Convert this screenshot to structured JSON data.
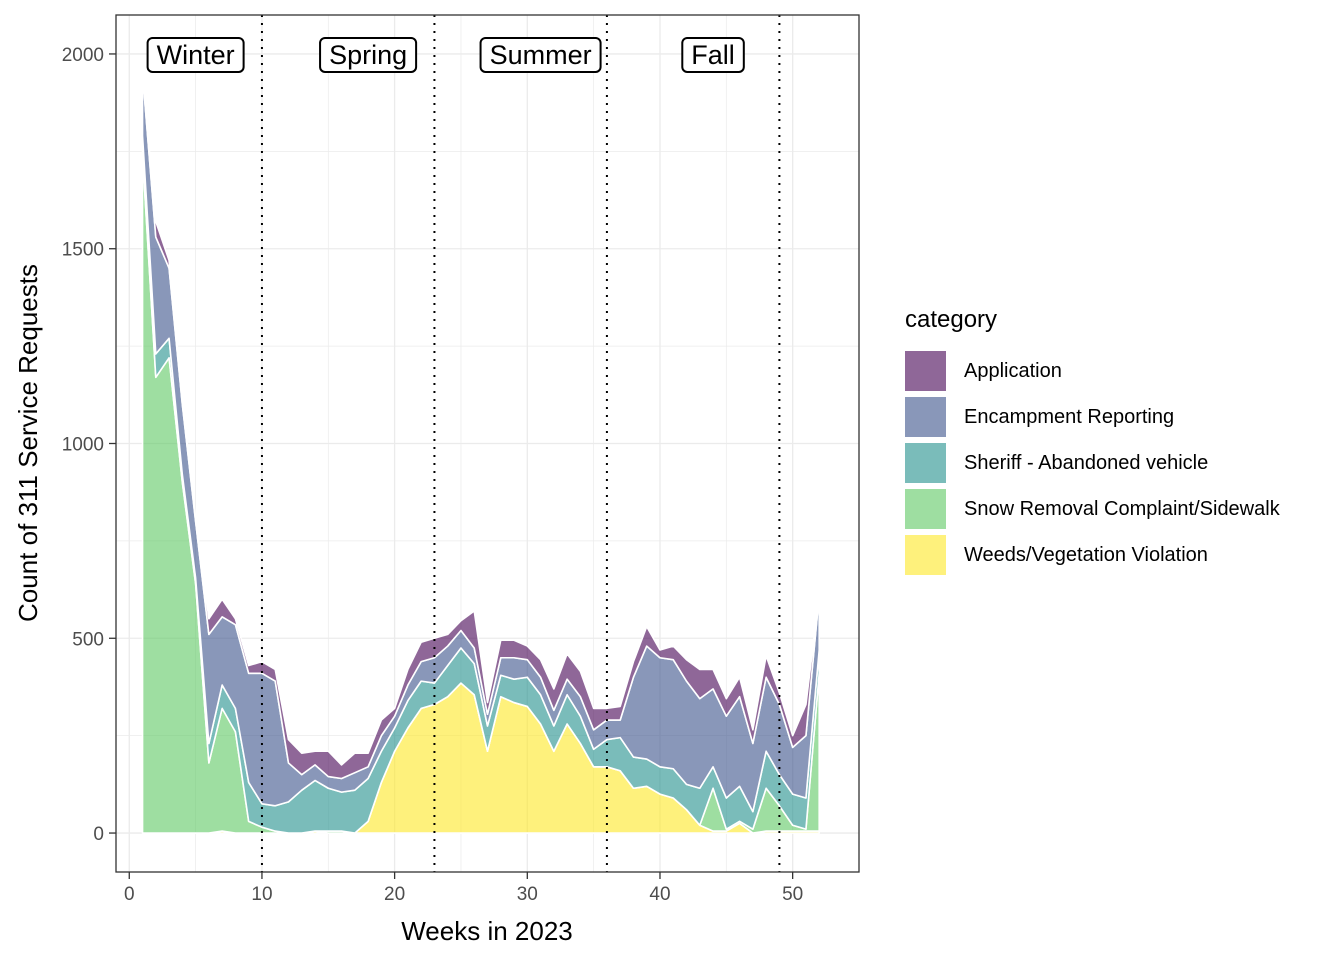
{
  "chart_data": {
    "type": "area",
    "stacked": true,
    "title": "",
    "xlabel": "Weeks in 2023",
    "ylabel": "Count of 311 Service Requests",
    "xlim": [
      -1,
      55
    ],
    "ylim": [
      -100,
      2100
    ],
    "x_ticks": [
      0,
      10,
      20,
      30,
      40,
      50
    ],
    "y_ticks": [
      0,
      500,
      1000,
      1500,
      2000
    ],
    "grid": true,
    "legend": {
      "title": "category",
      "position": "right"
    },
    "season_dividers": [
      10,
      23,
      36,
      49
    ],
    "season_labels": [
      {
        "label": "Winter",
        "x": 5
      },
      {
        "label": "Spring",
        "x": 18
      },
      {
        "label": "Summer",
        "x": 31
      },
      {
        "label": "Fall",
        "x": 44
      }
    ],
    "x": [
      1,
      2,
      3,
      4,
      5,
      6,
      7,
      8,
      9,
      10,
      11,
      12,
      13,
      14,
      15,
      16,
      17,
      18,
      19,
      20,
      21,
      22,
      23,
      24,
      25,
      26,
      27,
      28,
      29,
      30,
      31,
      32,
      33,
      34,
      35,
      36,
      37,
      38,
      39,
      40,
      41,
      42,
      43,
      44,
      45,
      46,
      47,
      48,
      49,
      50,
      51,
      52
    ],
    "series": [
      {
        "name": "Weeds/Vegetation Violation",
        "color": "#FDE725",
        "values": [
          0,
          0,
          0,
          0,
          0,
          0,
          5,
          0,
          0,
          0,
          0,
          0,
          0,
          5,
          0,
          0,
          0,
          30,
          130,
          210,
          270,
          320,
          330,
          350,
          385,
          355,
          210,
          350,
          335,
          325,
          280,
          210,
          280,
          230,
          170,
          170,
          160,
          115,
          120,
          100,
          90,
          60,
          20,
          5,
          5,
          25,
          0,
          5,
          5,
          5,
          5,
          5
        ]
      },
      {
        "name": "Snow Removal Complaint/Sidewalk",
        "color": "#5DC863",
        "values": [
          1740,
          1170,
          1220,
          900,
          640,
          180,
          315,
          260,
          30,
          15,
          5,
          0,
          0,
          0,
          5,
          5,
          0,
          0,
          0,
          0,
          0,
          0,
          0,
          0,
          0,
          0,
          0,
          0,
          0,
          0,
          0,
          0,
          0,
          0,
          0,
          0,
          0,
          0,
          0,
          0,
          0,
          0,
          0,
          110,
          5,
          5,
          10,
          110,
          65,
          15,
          5,
          405
        ]
      },
      {
        "name": "Sheriff - Abandoned vehicle",
        "color": "#21908C",
        "values": [
          50,
          60,
          50,
          20,
          15,
          50,
          60,
          60,
          100,
          60,
          65,
          80,
          110,
          130,
          110,
          100,
          110,
          110,
          80,
          60,
          70,
          70,
          55,
          80,
          90,
          80,
          65,
          55,
          60,
          75,
          75,
          65,
          75,
          70,
          45,
          70,
          85,
          80,
          70,
          70,
          75,
          65,
          95,
          55,
          80,
          90,
          45,
          95,
          80,
          80,
          80,
          60
        ]
      },
      {
        "name": "Encampment Reporting",
        "color": "#3B528B",
        "values": [
          160,
          300,
          180,
          180,
          145,
          280,
          175,
          215,
          280,
          335,
          320,
          100,
          40,
          40,
          30,
          35,
          45,
          30,
          40,
          30,
          40,
          50,
          65,
          50,
          45,
          40,
          30,
          45,
          55,
          45,
          45,
          40,
          40,
          50,
          50,
          50,
          45,
          205,
          290,
          280,
          280,
          265,
          230,
          200,
          210,
          230,
          175,
          190,
          180,
          120,
          160,
          140
        ]
      },
      {
        "name": "Application",
        "color": "#440154",
        "values": [
          0,
          40,
          20,
          10,
          10,
          40,
          45,
          15,
          20,
          30,
          30,
          60,
          55,
          35,
          65,
          35,
          50,
          35,
          40,
          20,
          40,
          50,
          50,
          30,
          25,
          95,
          30,
          45,
          45,
          35,
          45,
          55,
          65,
          65,
          55,
          30,
          35,
          40,
          50,
          20,
          35,
          55,
          75,
          50,
          45,
          50,
          35,
          55,
          30,
          30,
          80,
          0
        ]
      }
    ]
  }
}
